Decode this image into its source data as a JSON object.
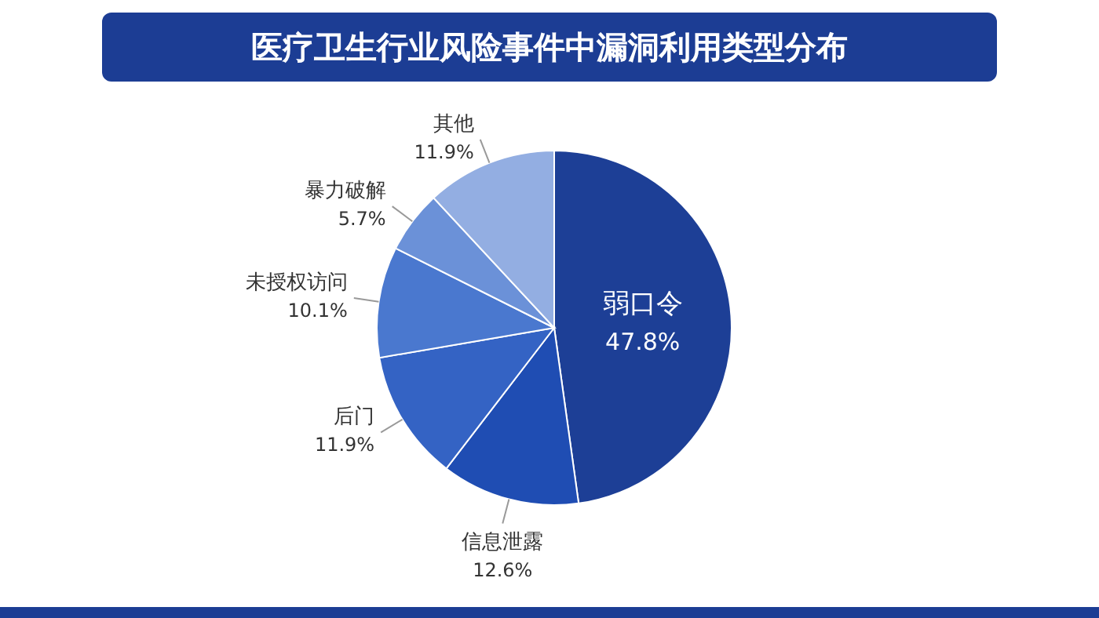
{
  "chart_data": {
    "type": "pie",
    "title": "医疗卫生行业风险事件中漏洞利用类型分布",
    "categories": [
      "弱口令",
      "信息泄露",
      "后门",
      "未授权访问",
      "暴力破解",
      "其他"
    ],
    "values": [
      47.8,
      12.6,
      11.9,
      10.1,
      5.7,
      11.9
    ],
    "value_labels": [
      "47.8%",
      "12.6%",
      "11.9%",
      "10.1%",
      "5.7%",
      "11.9%"
    ],
    "colors": [
      "#1d3f96",
      "#1f4db3",
      "#3463c4",
      "#4a78cf",
      "#6b91d8",
      "#93aee2"
    ],
    "legend": false
  }
}
